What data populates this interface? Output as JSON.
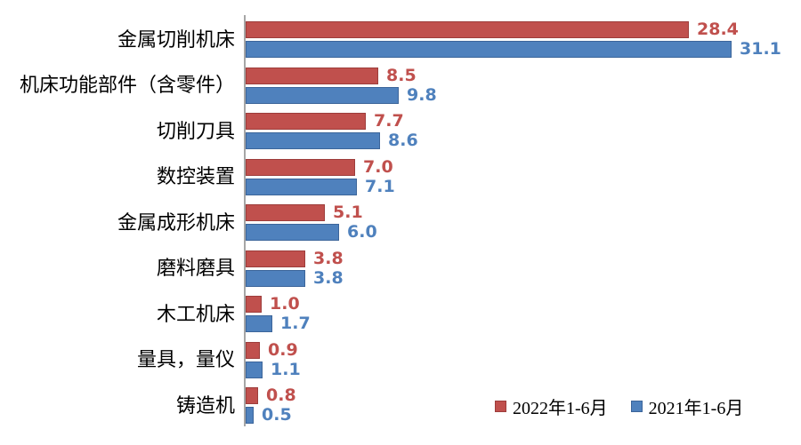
{
  "chart_data": {
    "type": "bar",
    "orientation": "horizontal",
    "categories": [
      "金属切削机床",
      "机床功能部件（含零件）",
      "切削刀具",
      "数控装置",
      "金属成形机床",
      "磨料磨具",
      "木工机床",
      "量具，量仪",
      "铸造机"
    ],
    "series": [
      {
        "name": "2022年1-6月",
        "color": "#c0504d",
        "border_color": "#9d3d3b",
        "values": [
          28.4,
          8.5,
          7.7,
          7.0,
          5.1,
          3.8,
          1.0,
          0.9,
          0.8
        ]
      },
      {
        "name": "2021年1-6月",
        "color": "#4f81bd",
        "border_color": "#3c659a",
        "values": [
          31.1,
          9.8,
          8.6,
          7.1,
          6.0,
          3.8,
          1.7,
          1.1,
          0.5
        ]
      }
    ],
    "xlim": [
      0,
      35
    ],
    "value_labels": true,
    "grid": false,
    "legend_position": "bottom-right",
    "axis_color": "#a6a6a6",
    "title": "",
    "xlabel": "",
    "ylabel": ""
  },
  "legend": {
    "items": [
      {
        "label": "2022年1-6月",
        "color": "#c0504d"
      },
      {
        "label": "2021年1-6月",
        "color": "#4f81bd"
      }
    ]
  }
}
